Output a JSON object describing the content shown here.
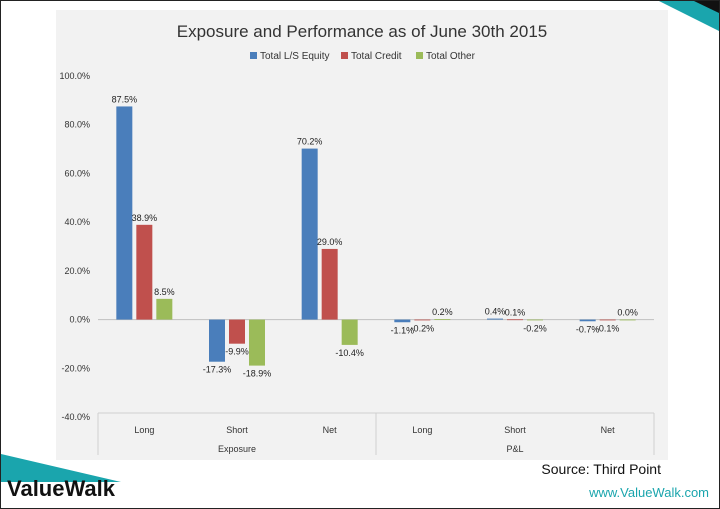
{
  "branding": {
    "name": "ValueWalk",
    "url": "www.ValueWalk.com"
  },
  "source": "Source: Third Point",
  "colors": {
    "total_ls_equity": "#4a7ebb",
    "total_credit": "#c0504d",
    "total_other": "#9bbb59",
    "accent": "#1aa5ad"
  },
  "chart_data": {
    "type": "bar",
    "title": "Exposure and Performance as of June 30th 2015",
    "legend_position": "top",
    "categories": [
      "Long",
      "Short",
      "Net",
      "Long",
      "Short",
      "Net"
    ],
    "groups": [
      {
        "label": "Exposure",
        "span": 3
      },
      {
        "label": "P&L",
        "span": 3
      }
    ],
    "series": [
      {
        "name": "Total L/S Equity",
        "values": [
          87.5,
          -17.3,
          70.2,
          -1.1,
          0.4,
          -0.7
        ],
        "labels": [
          "87.5%",
          "-17.3%",
          "70.2%",
          "-1.1%",
          "0.4%",
          "-0.7%"
        ]
      },
      {
        "name": "Total Credit",
        "values": [
          38.9,
          -9.9,
          29.0,
          -0.2,
          0.1,
          -0.1
        ],
        "labels": [
          "38.9%",
          "-9.9%",
          "29.0%",
          "-0.2%",
          "0.1%",
          "-0.1%"
        ]
      },
      {
        "name": "Total Other",
        "values": [
          8.5,
          -18.9,
          -10.4,
          0.2,
          -0.2,
          0.0
        ],
        "labels": [
          "8.5%",
          "-18.9%",
          "-10.4%",
          "0.2%",
          "-0.2%",
          "0.0%"
        ]
      }
    ],
    "ylim": [
      -40,
      100
    ],
    "yticks": [
      100,
      80,
      60,
      40,
      20,
      0,
      -20,
      -40
    ],
    "ytick_labels": [
      "100.0%",
      "80.0%",
      "60.0%",
      "40.0%",
      "20.0%",
      "0.0%",
      "-20.0%",
      "-40.0%"
    ],
    "grid": false
  }
}
